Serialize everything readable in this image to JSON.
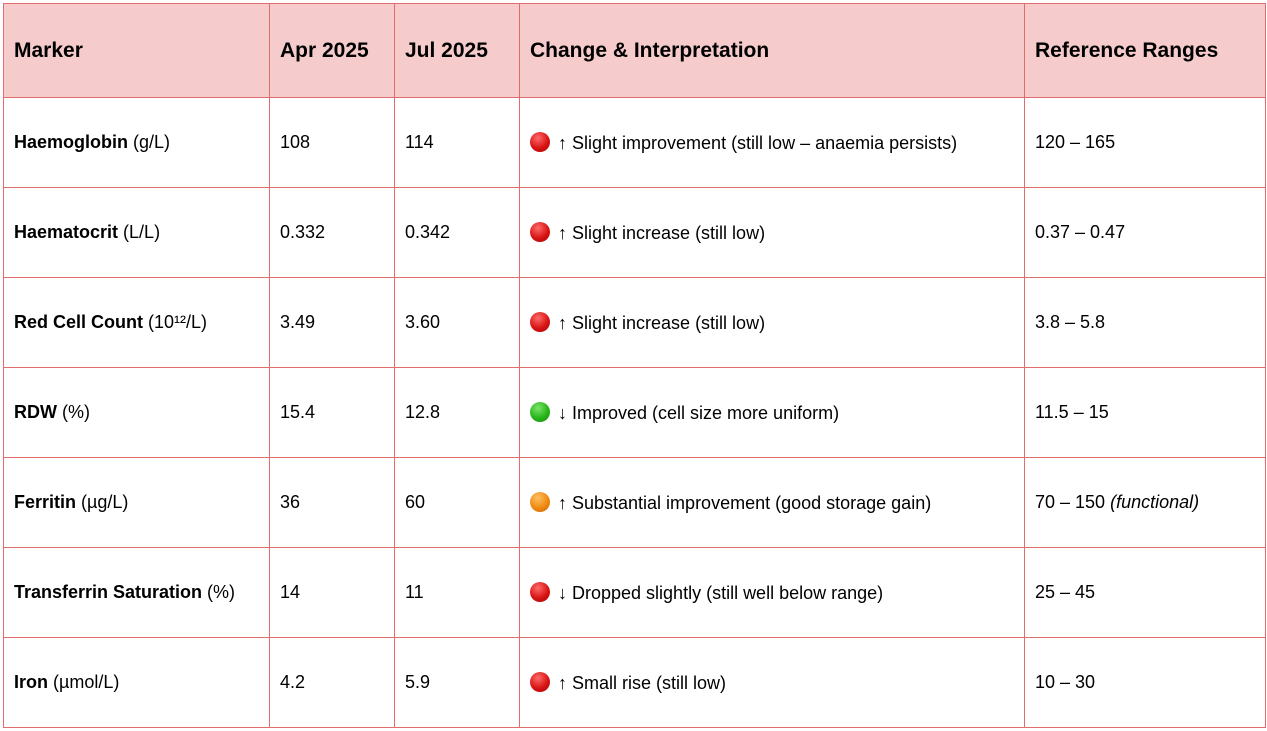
{
  "headers": [
    "Marker",
    "Apr 2025",
    "Jul 2025",
    "Change & Interpretation",
    "Reference Ranges"
  ],
  "status_colors": {
    "red": "#d81414",
    "green": "#27b51a",
    "orange": "#ee8a12"
  },
  "rows": [
    {
      "name": "Haemoglobin",
      "unit": " (g/L)",
      "apr": "108",
      "jul": "114",
      "status": "red",
      "icon": "red-circle-icon",
      "change": "↑ Slight improvement (still low – anaemia persists)",
      "range": "120 – 165",
      "range_note": ""
    },
    {
      "name": "Haematocrit",
      "unit": " (L/L)",
      "apr": "0.332",
      "jul": "0.342",
      "status": "red",
      "icon": "red-circle-icon",
      "change": "↑ Slight increase (still low)",
      "range": "0.37 – 0.47",
      "range_note": ""
    },
    {
      "name": "Red Cell Count",
      "unit": " (10¹²/L)",
      "apr": "3.49",
      "jul": "3.60",
      "status": "red",
      "icon": "red-circle-icon",
      "change": "↑ Slight increase (still low)",
      "range": "3.8 – 5.8",
      "range_note": ""
    },
    {
      "name": "RDW",
      "unit": " (%)",
      "apr": "15.4",
      "jul": "12.8",
      "status": "green",
      "icon": "green-circle-icon",
      "change": "↓ Improved (cell size more uniform)",
      "range": "11.5 – 15",
      "range_note": ""
    },
    {
      "name": "Ferritin",
      "unit": " (µg/L)",
      "apr": "36",
      "jul": "60",
      "status": "orange",
      "icon": "orange-circle-icon",
      "change": "↑ Substantial improvement (good storage gain)",
      "range": "70 – 150 ",
      "range_note": "(functional)"
    },
    {
      "name": "Transferrin Saturation",
      "unit": " (%)",
      "apr": "14",
      "jul": "11",
      "status": "red",
      "icon": "red-circle-icon",
      "change": "↓ Dropped slightly (still well below range)",
      "range": "25 – 45",
      "range_note": ""
    },
    {
      "name": "Iron",
      "unit": " (µmol/L)",
      "apr": "4.2",
      "jul": "5.9",
      "status": "red",
      "icon": "red-circle-icon",
      "change": "↑ Small rise (still low)",
      "range": "10 – 30",
      "range_note": ""
    }
  ]
}
